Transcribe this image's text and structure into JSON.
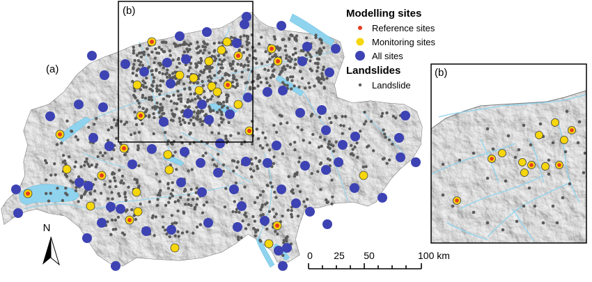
{
  "labels": {
    "main_map": "(a)",
    "inset_box": "(b)",
    "inset_panel": "(b)",
    "north": "N"
  },
  "legend": {
    "modelling_title": "Modelling sites",
    "reference": "Reference sites",
    "monitoring": "Monitoring sites",
    "all_sites": "All sites",
    "landslides_title": "Landslides",
    "landslide": "Landslide"
  },
  "scale_bar": {
    "ticks": [
      "0",
      "25",
      "50",
      "100 km"
    ]
  },
  "colors": {
    "reference": "#e63a1e",
    "monitoring": "#f6d60c",
    "all_sites": "#3d43b3",
    "landslide": "#5a5a5a",
    "water": "#8fd3ee",
    "terrain": "#d9d9d9"
  }
}
